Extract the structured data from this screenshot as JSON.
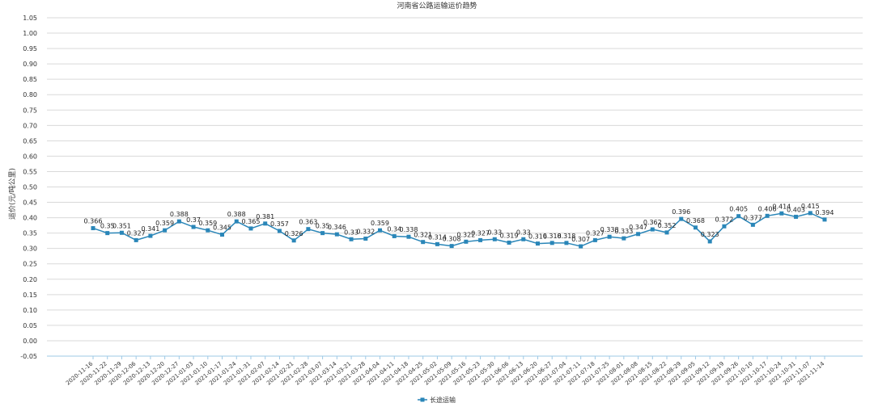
{
  "chart_data": {
    "type": "line",
    "title": "河南省公路运输运价趋势",
    "ylabel": "运价(元/吨公里)",
    "xlabel": "",
    "ylim": [
      -0.05,
      1.05
    ],
    "yticks": [
      "1.05",
      "1.00",
      "0.95",
      "0.90",
      "0.85",
      "0.80",
      "0.75",
      "0.70",
      "0.65",
      "0.60",
      "0.55",
      "0.50",
      "0.45",
      "0.40",
      "0.35",
      "0.30",
      "0.25",
      "0.20",
      "0.15",
      "0.10",
      "0.05",
      "0.00",
      "-0.05"
    ],
    "grid": true,
    "legend_position": "bottom",
    "colors": {
      "series": "#2a86b8",
      "grid": "#d9d9d9",
      "axis": "#9ec9e6"
    },
    "categories": [
      "2020-11-16",
      "2020-11-22",
      "2020-11-29",
      "2020-12-06",
      "2020-12-13",
      "2020-12-20",
      "2020-12-27",
      "2021-01-03",
      "2021-01-10",
      "2021-01-17",
      "2021-01-24",
      "2021-01-31",
      "2021-02-07",
      "2021-02-14",
      "2021-02-21",
      "2021-02-28",
      "2021-03-07",
      "2021-03-14",
      "2021-03-21",
      "2021-03-28",
      "2021-04-04",
      "2021-04-11",
      "2021-04-18",
      "2021-04-25",
      "2021-05-02",
      "2021-05-09",
      "2021-05-16",
      "2021-05-23",
      "2021-05-30",
      "2021-06-06",
      "2021-06-13",
      "2021-06-20",
      "2021-06-27",
      "2021-07-04",
      "2021-07-11",
      "2021-07-18",
      "2021-07-25",
      "2021-08-01",
      "2021-08-08",
      "2021-08-15",
      "2021-08-22",
      "2021-08-29",
      "2021-09-05",
      "2021-09-12",
      "2021-09-19",
      "2021-09-26",
      "2021-10-10",
      "2021-10-17",
      "2021-10-24",
      "2021-10-31",
      "2021-11-07",
      "2021-11-14"
    ],
    "series": [
      {
        "name": "长途运输",
        "values": [
          0.366,
          0.35,
          0.351,
          0.327,
          0.341,
          0.359,
          0.388,
          0.37,
          0.359,
          0.345,
          0.388,
          0.365,
          0.381,
          0.357,
          0.326,
          0.363,
          0.35,
          0.346,
          0.33,
          0.332,
          0.359,
          0.34,
          0.338,
          0.321,
          0.314,
          0.308,
          0.322,
          0.327,
          0.33,
          0.319,
          0.33,
          0.316,
          0.318,
          0.318,
          0.307,
          0.327,
          0.338,
          0.333,
          0.347,
          0.362,
          0.352,
          0.396,
          0.368,
          0.323,
          0.372,
          0.405,
          0.377,
          0.406,
          0.414,
          0.403,
          0.415,
          0.394
        ],
        "labels": [
          "0.366",
          "0.35",
          "0.351",
          "0.327",
          "0.341",
          "0.359",
          "0.388",
          "0.37",
          "0.359",
          "0.345",
          "0.388",
          "0.365",
          "0.381",
          "0.357",
          "0.326",
          "0.363",
          "0.35",
          "0.346",
          "0.33",
          "0.332",
          "0.359",
          "0.34",
          "0.338",
          "0.321",
          "0.314",
          "0.308",
          "0.322",
          "0.327",
          "0.33",
          "0.319",
          "0.33",
          "0.316",
          "0.318",
          "0.318",
          "0.307",
          "0.327",
          "0.338",
          "0.333",
          "0.347",
          "0.362",
          "0.352",
          "0.396",
          "0.368",
          "0.323",
          "0.372",
          "0.405",
          "0.377",
          "0.406",
          "0.414",
          "0.403",
          "0.415",
          "0.394"
        ]
      }
    ]
  }
}
